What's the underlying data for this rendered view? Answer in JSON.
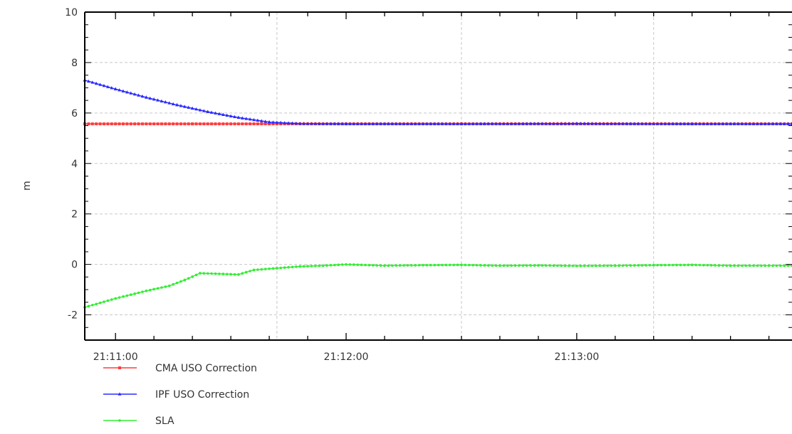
{
  "chart_data": {
    "type": "line",
    "title": "",
    "xlabel": "",
    "ylabel": "m",
    "ylim": [
      -3,
      10
    ],
    "xlim": [
      "21:10:52",
      "21:13:56"
    ],
    "grid": true,
    "legend_position": "bottom-left",
    "y_ticks": [
      -2,
      0,
      2,
      4,
      6,
      8,
      10
    ],
    "x_ticks": [
      "21:11:00",
      "21:12:00",
      "21:13:00"
    ],
    "grid_times": [
      "21:11:42",
      "21:12:30",
      "21:13:20"
    ],
    "series": [
      {
        "name": "CMA USO Correction",
        "color": "#ff3b3b",
        "marker": "square",
        "points": [
          [
            "21:10:52",
            5.57
          ],
          [
            "21:11:20",
            5.57
          ],
          [
            "21:11:40",
            5.57
          ],
          [
            "21:12:00",
            5.57
          ],
          [
            "21:12:30",
            5.57
          ],
          [
            "21:13:00",
            5.57
          ],
          [
            "21:13:30",
            5.57
          ],
          [
            "21:13:56",
            5.57
          ]
        ]
      },
      {
        "name": "IPF USO Correction",
        "color": "#2b2bff",
        "marker": "triangle",
        "points": [
          [
            "21:10:52",
            7.3
          ],
          [
            "21:11:00",
            6.95
          ],
          [
            "21:11:08",
            6.62
          ],
          [
            "21:11:16",
            6.32
          ],
          [
            "21:11:24",
            6.05
          ],
          [
            "21:11:32",
            5.82
          ],
          [
            "21:11:40",
            5.64
          ],
          [
            "21:11:48",
            5.58
          ],
          [
            "21:12:00",
            5.57
          ],
          [
            "21:12:30",
            5.57
          ],
          [
            "21:13:00",
            5.58
          ],
          [
            "21:13:30",
            5.57
          ],
          [
            "21:13:56",
            5.57
          ]
        ]
      },
      {
        "name": "SLA",
        "color": "#33ee33",
        "marker": "circle",
        "points": [
          [
            "21:10:52",
            -1.7
          ],
          [
            "21:11:00",
            -1.35
          ],
          [
            "21:11:08",
            -1.05
          ],
          [
            "21:11:14",
            -0.85
          ],
          [
            "21:11:18",
            -0.62
          ],
          [
            "21:11:22",
            -0.35
          ],
          [
            "21:11:28",
            -0.38
          ],
          [
            "21:11:32",
            -0.4
          ],
          [
            "21:11:36",
            -0.22
          ],
          [
            "21:11:42",
            -0.15
          ],
          [
            "21:11:48",
            -0.08
          ],
          [
            "21:11:54",
            -0.05
          ],
          [
            "21:12:00",
            0.0
          ],
          [
            "21:12:10",
            -0.05
          ],
          [
            "21:12:20",
            -0.03
          ],
          [
            "21:12:30",
            -0.02
          ],
          [
            "21:12:40",
            -0.05
          ],
          [
            "21:12:50",
            -0.04
          ],
          [
            "21:13:00",
            -0.06
          ],
          [
            "21:13:10",
            -0.05
          ],
          [
            "21:13:20",
            -0.03
          ],
          [
            "21:13:30",
            -0.02
          ],
          [
            "21:13:40",
            -0.05
          ],
          [
            "21:13:56",
            -0.05
          ]
        ]
      }
    ]
  }
}
